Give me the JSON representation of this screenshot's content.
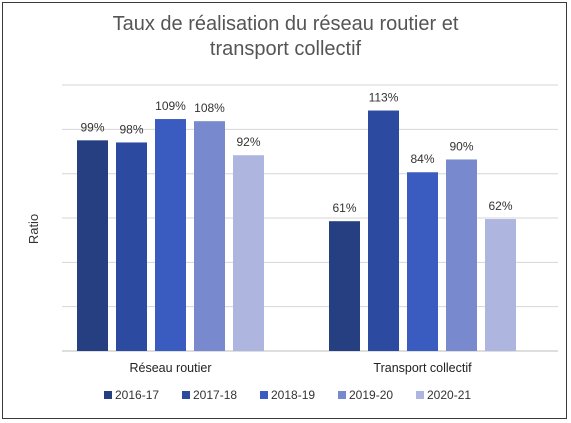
{
  "chart_data": {
    "type": "bar",
    "title": "Taux de réalisation du réseau routier et transport collectif",
    "title_lines": [
      "Taux de réalisation du réseau routier et",
      "transport collectif"
    ],
    "xlabel": "",
    "ylabel": "Ratio",
    "ylim": [
      0,
      125
    ],
    "grid": true,
    "legend_position": "bottom",
    "categories": [
      "Réseau routier",
      "Transport collectif"
    ],
    "series": [
      {
        "name": "2016-17",
        "values": [
          99,
          61
        ],
        "labels": [
          "99%",
          "61%"
        ],
        "color": "#263f80"
      },
      {
        "name": "2017-18",
        "values": [
          98,
          113
        ],
        "labels": [
          "98%",
          "113%"
        ],
        "color": "#2c4aa0"
      },
      {
        "name": "2018-19",
        "values": [
          109,
          84
        ],
        "labels": [
          "109%",
          "84%"
        ],
        "color": "#3a5bc0"
      },
      {
        "name": "2019-20",
        "values": [
          108,
          90
        ],
        "labels": [
          "108%",
          "90%"
        ],
        "color": "#7889cd"
      },
      {
        "name": "2020-21",
        "values": [
          92,
          62
        ],
        "labels": [
          "92%",
          "62%"
        ],
        "color": "#aeb6e0"
      }
    ]
  }
}
